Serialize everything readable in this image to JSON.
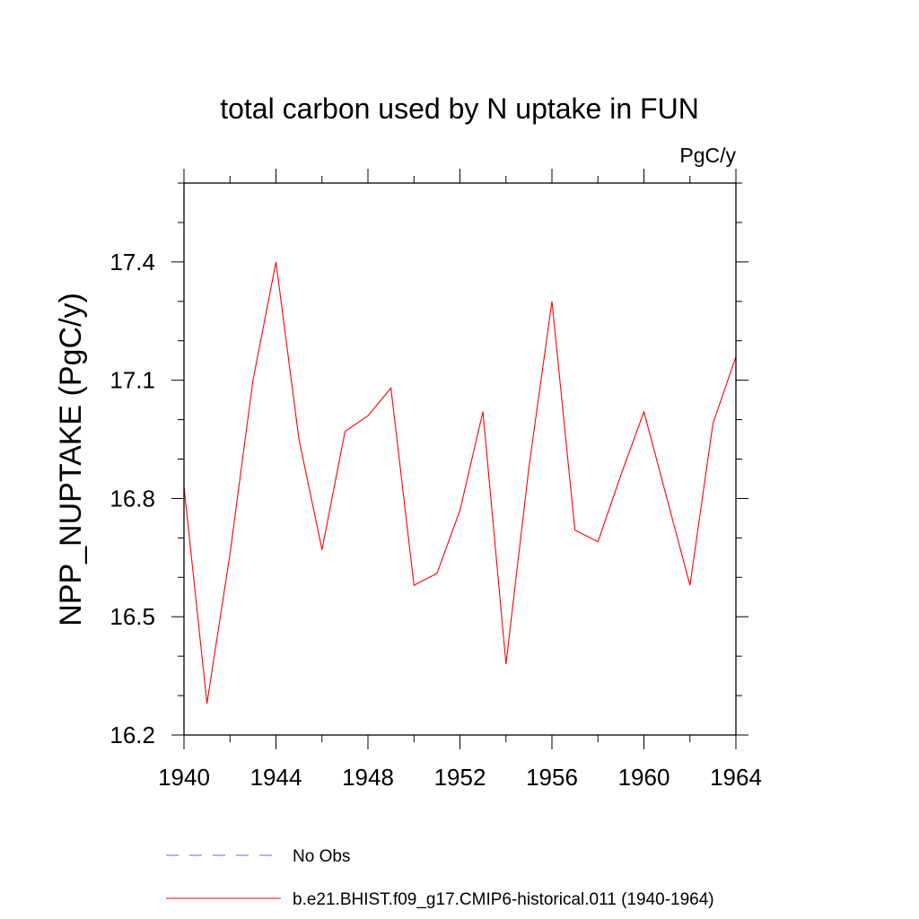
{
  "chart_data": {
    "type": "line",
    "title": "total carbon used by N uptake in FUN",
    "units_label": "PgC/y",
    "ylabel": "NPP_NUPTAKE  (PgC/y)",
    "xlabel": "",
    "xlim": [
      1940,
      1964
    ],
    "ylim": [
      16.2,
      17.6
    ],
    "x_ticks": [
      "1940",
      "1944",
      "1948",
      "1952",
      "1956",
      "1960",
      "1964"
    ],
    "y_ticks": [
      "16.2",
      "16.5",
      "16.8",
      "17.1",
      "17.4"
    ],
    "grid": false,
    "legend_position": "bottom",
    "series": [
      {
        "name": "No Obs",
        "color": "#6a6ad0",
        "style": "dashed",
        "x": [],
        "y": []
      },
      {
        "name": "b.e21.BHIST.f09_g17.CMIP6-historical.011 (1940-1964)",
        "color": "#ff0000",
        "style": "solid",
        "x": [
          1940,
          1941,
          1942,
          1943,
          1944,
          1945,
          1946,
          1947,
          1948,
          1949,
          1950,
          1951,
          1952,
          1953,
          1954,
          1955,
          1956,
          1957,
          1958,
          1959,
          1960,
          1961,
          1962,
          1963,
          1964
        ],
        "y": [
          16.83,
          16.28,
          16.66,
          17.1,
          17.4,
          16.95,
          16.67,
          16.97,
          17.01,
          17.08,
          16.58,
          16.61,
          16.77,
          17.02,
          16.38,
          16.88,
          17.3,
          16.72,
          16.69,
          16.86,
          17.02,
          16.8,
          16.58,
          16.99,
          17.16
        ]
      }
    ]
  }
}
